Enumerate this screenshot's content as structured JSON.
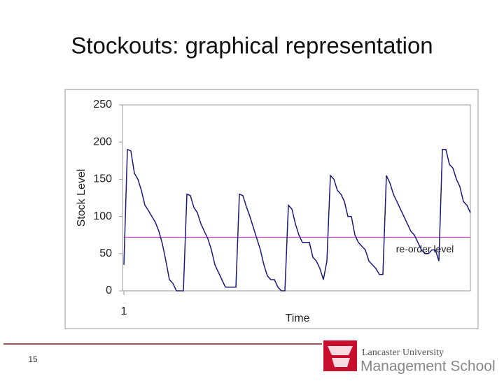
{
  "slide": {
    "title": "Stockouts: graphical representation",
    "page_number": 15,
    "logo_line1": "Lancaster University",
    "logo_line2": "Management School"
  },
  "chart_data": {
    "type": "line",
    "xlabel": "Time",
    "ylabel": "Stock Level",
    "color": "#1a1a7a",
    "x": [
      1,
      2,
      3,
      4,
      5,
      6,
      7,
      8,
      9,
      10,
      11,
      12,
      13,
      14,
      15,
      16,
      17,
      18,
      19,
      20,
      21,
      22,
      23,
      24,
      25,
      26,
      27,
      28,
      29,
      30,
      31,
      32,
      33,
      34,
      35,
      36,
      37,
      38,
      39,
      40,
      41,
      42,
      43,
      44,
      45,
      46,
      47,
      48,
      49,
      50,
      51,
      52,
      53,
      54,
      55,
      56,
      57,
      58,
      59,
      60,
      61,
      62,
      63,
      64,
      65,
      66,
      67,
      68,
      69,
      70,
      71,
      72,
      73,
      74,
      75,
      76,
      77,
      78,
      79,
      80,
      81,
      82,
      83,
      84,
      85,
      86,
      87,
      88,
      89,
      90,
      91,
      92,
      93,
      94,
      95,
      96,
      97,
      98,
      99,
      100
    ],
    "values": [
      35,
      190,
      188,
      158,
      150,
      135,
      115,
      108,
      100,
      92,
      80,
      63,
      40,
      15,
      10,
      0,
      0,
      0,
      130,
      128,
      112,
      105,
      90,
      80,
      70,
      55,
      35,
      25,
      15,
      5,
      5,
      5,
      5,
      130,
      128,
      113,
      100,
      85,
      70,
      55,
      35,
      20,
      15,
      15,
      5,
      0,
      0,
      115,
      110,
      90,
      75,
      65,
      65,
      65,
      45,
      40,
      30,
      15,
      40,
      155,
      150,
      135,
      130,
      120,
      100,
      100,
      75,
      65,
      60,
      55,
      40,
      35,
      30,
      22,
      22,
      155,
      145,
      130,
      120,
      110,
      100,
      90,
      80,
      75,
      65,
      55,
      50,
      50,
      55,
      55,
      40,
      190,
      190,
      170,
      165,
      150,
      140,
      120,
      115,
      105
    ],
    "xlim": [
      1,
      100
    ],
    "xticks": [
      1
    ],
    "ylim": [
      0,
      250
    ],
    "yticks": [
      0,
      50,
      100,
      150,
      200,
      250
    ],
    "reorder_level": 72,
    "reorder_color": "#cc33cc",
    "reorder_label": "re-order level"
  }
}
